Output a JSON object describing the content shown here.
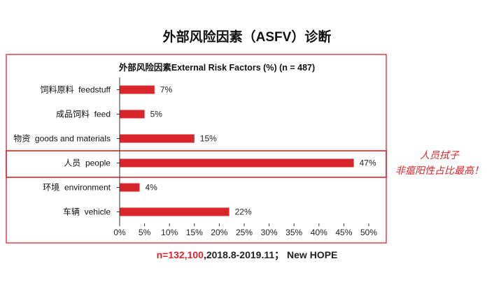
{
  "slide": {
    "title": "外部风险因素（ASFV）诊断",
    "annotation_line1": "人员拭子",
    "annotation_line2": "非瘟阳性占比最高！",
    "footer_highlight": "n=132,100",
    "footer_rest": ",2018.8-2019.11；  New HOPE"
  },
  "colors": {
    "bar": "#d9262b",
    "frame": "#d9262b",
    "accent_text": "#d9262b"
  },
  "chart_data": {
    "type": "bar",
    "orientation": "horizontal",
    "title": "外部风险因素External  Risk  Factors  (%)  (n = 487)",
    "categories": [
      "饲料原料  feedstuff",
      "成品饲料  feed",
      "物资  goods and materials",
      "人员  people",
      "环境  environment",
      "车辆  vehicle"
    ],
    "values": [
      7,
      5,
      15,
      47,
      4,
      22
    ],
    "value_labels": [
      "7%",
      "5%",
      "15%",
      "47%",
      "4%",
      "22%"
    ],
    "xlim": [
      0,
      50
    ],
    "ticks": [
      0,
      5,
      10,
      15,
      20,
      25,
      30,
      35,
      40,
      45,
      50
    ],
    "tick_labels": [
      "0%",
      "5%",
      "10%",
      "15%",
      "20%",
      "25%",
      "30%",
      "35%",
      "40%",
      "45%",
      "50%"
    ],
    "highlighted_category": "人员  people",
    "grid": false,
    "legend": "none"
  }
}
